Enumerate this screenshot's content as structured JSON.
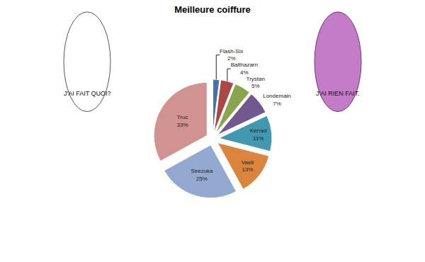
{
  "chart_data": {
    "type": "pie",
    "title": "Meilleure coiffure",
    "categories": [
      "Flash-Six",
      "Balthazarn",
      "Trystan",
      "Londemain",
      "Kerrad",
      "Vaeli",
      "Seezuka",
      "Truc"
    ],
    "values": [
      2,
      4,
      5,
      7,
      11,
      13,
      25,
      33
    ],
    "value_labels": [
      "2%",
      "4%",
      "5%",
      "7%",
      "11%",
      "13%",
      "25%",
      "33%"
    ],
    "colors": [
      "#4572a7",
      "#aa4643",
      "#89a54e",
      "#71588f",
      "#4198af",
      "#db843d",
      "#93a9cf",
      "#d19392"
    ],
    "data_labels": true,
    "annotations": [
      "J'AI FAIT QUOI?",
      "J'AI RIEN FAIT."
    ]
  }
}
